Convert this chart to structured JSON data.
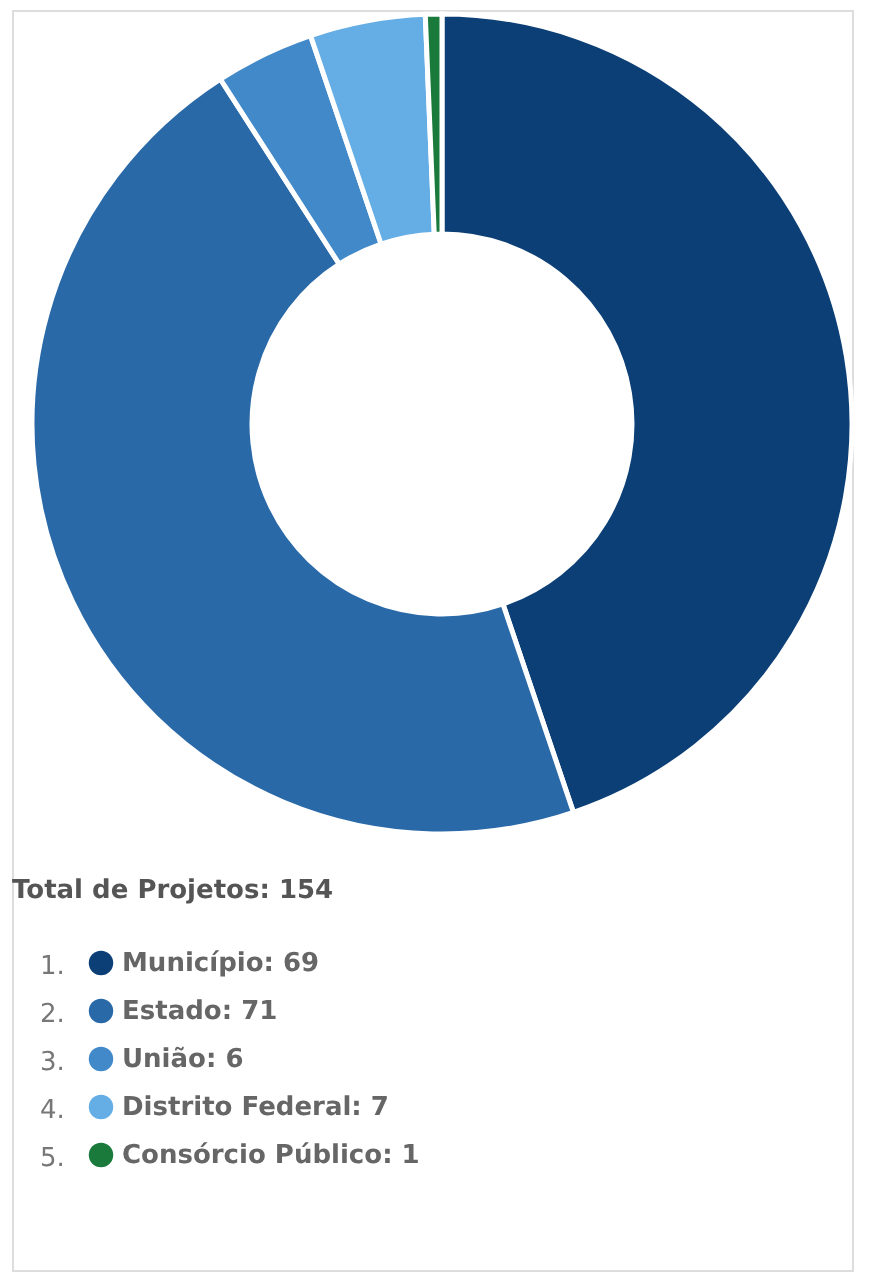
{
  "chart_data": {
    "type": "donut",
    "categories": [
      "Município: 69",
      "Estado: 71",
      "União: 6",
      "Distrito Federal: 7",
      "Consórcio Público: 1"
    ],
    "values": [
      69,
      71,
      6,
      7,
      1
    ],
    "colors": [
      "#0b3f76",
      "#2a69a8",
      "#4189c9",
      "#64ade5",
      "#1a7a3c"
    ],
    "annotations": [
      "Total de Projetos: 154",
      "1.",
      "2.",
      "3.",
      "4.",
      "5."
    ],
    "legend": "bottom"
  }
}
